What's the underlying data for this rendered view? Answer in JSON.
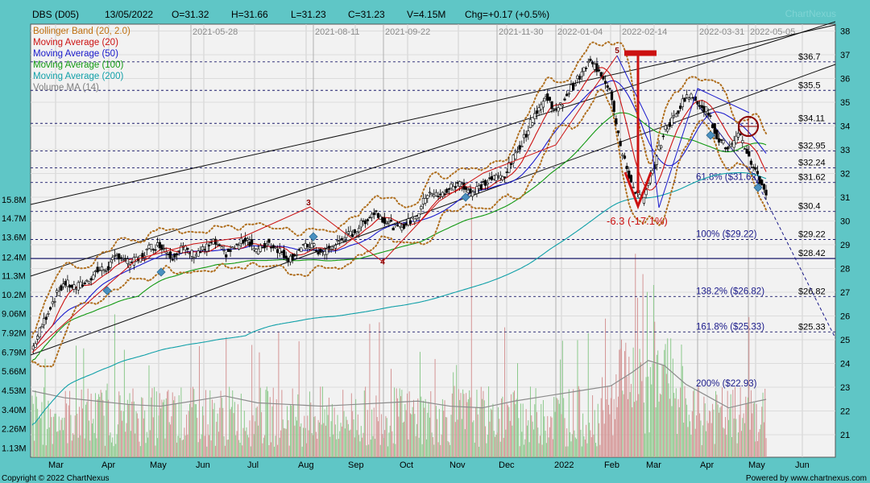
{
  "chart_data": {
    "type": "candlestick",
    "header": {
      "symbol": "DBS (D05)",
      "date": "13/05/2022",
      "open": "O=31.32",
      "high": "H=31.66",
      "low": "L=31.23",
      "close": "C=31.23",
      "volume": "V=4.15M",
      "change": "Chg=+0.17 (+0.5%)"
    },
    "watermark": "ChartNexus",
    "legend": [
      {
        "label": "Bollinger Band (20, 2.0)",
        "color": "#c07010"
      },
      {
        "label": "Moving Average (20)",
        "color": "#cc1111"
      },
      {
        "label": "Moving Average (50)",
        "color": "#1a1acc"
      },
      {
        "label": "Moving Average (100)",
        "color": "#119911"
      },
      {
        "label": "Moving Average (200)",
        "color": "#10a0a8"
      },
      {
        "label": "Volume MA (14)",
        "color": "#808080"
      }
    ],
    "y_ticks_price": [
      21,
      22,
      23,
      24,
      25,
      26,
      27,
      28,
      29,
      30,
      31,
      32,
      33,
      34,
      35,
      36,
      37,
      38
    ],
    "y_ticks_volume": [
      "15.8M",
      "14.7M",
      "13.6M",
      "12.4M",
      "11.3M",
      "10.2M",
      "9.06M",
      "7.92M",
      "6.79M",
      "5.66M",
      "4.53M",
      "3.40M",
      "2.26M",
      "1.13M"
    ],
    "x_months": [
      "Mar",
      "Apr",
      "May",
      "Jun",
      "Jul",
      "Aug",
      "Sep",
      "Oct",
      "Nov",
      "Dec",
      "2022",
      "Feb",
      "Mar",
      "Apr",
      "May",
      "Jun"
    ],
    "date_markers": [
      "2021-05-28",
      "2021-08-11",
      "2021-09-22",
      "2021-11-30",
      "2022-01-04",
      "2022-02-14",
      "2022-03-31",
      "2022-05-05"
    ],
    "level_lines": [
      {
        "value": 36.7,
        "label": "$36.7"
      },
      {
        "value": 35.5,
        "label": "$35.5"
      },
      {
        "value": 34.11,
        "label": "$34.11"
      },
      {
        "value": 32.95,
        "label": "$32.95"
      },
      {
        "value": 32.24,
        "label": "$32.24"
      },
      {
        "value": 31.62,
        "label": "$31.62"
      },
      {
        "value": 30.4,
        "label": "$30.4"
      },
      {
        "value": 29.22,
        "label": "$29.22"
      },
      {
        "value": 28.42,
        "label": "$28.42"
      },
      {
        "value": 26.82,
        "label": "$26.82"
      },
      {
        "value": 25.33,
        "label": "$25.33"
      }
    ],
    "fibonacci": [
      {
        "value": 31.62,
        "label": "61.8%   ($31.62)"
      },
      {
        "value": 29.22,
        "label": "100%   ($29.22)"
      },
      {
        "value": 26.82,
        "label": "138.2%   ($26.82)"
      },
      {
        "value": 25.33,
        "label": "161.8%   ($25.33)"
      },
      {
        "value": 22.93,
        "label": "200%   ($22.93)"
      }
    ],
    "drop_annotation": "-6.3 (-17.1%)",
    "wave_labels": [
      {
        "label": "3",
        "value": 30.6
      },
      {
        "label": "4",
        "value": 28.1
      },
      {
        "label": "5",
        "value": 37.0
      }
    ],
    "price_approx": [
      [
        0,
        24.6
      ],
      [
        10,
        25.7
      ],
      [
        20,
        26.7
      ],
      [
        30,
        27.4
      ],
      [
        40,
        27.2
      ],
      [
        50,
        27.4
      ],
      [
        60,
        27.9
      ],
      [
        70,
        28.0
      ],
      [
        80,
        28.6
      ],
      [
        90,
        28.2
      ],
      [
        100,
        28.4
      ],
      [
        110,
        28.9
      ],
      [
        120,
        29.0
      ],
      [
        130,
        28.5
      ],
      [
        140,
        28.9
      ],
      [
        150,
        28.6
      ],
      [
        160,
        28.8
      ],
      [
        170,
        29.1
      ],
      [
        180,
        28.6
      ],
      [
        190,
        28.9
      ],
      [
        200,
        29.3
      ],
      [
        210,
        28.7
      ],
      [
        220,
        29.1
      ],
      [
        230,
        28.8
      ],
      [
        240,
        28.4
      ],
      [
        250,
        28.8
      ],
      [
        260,
        29.0
      ],
      [
        270,
        28.6
      ],
      [
        280,
        28.9
      ],
      [
        290,
        29.3
      ],
      [
        300,
        29.5
      ],
      [
        310,
        30.0
      ],
      [
        320,
        30.4
      ],
      [
        330,
        30.0
      ],
      [
        340,
        29.7
      ],
      [
        350,
        29.9
      ],
      [
        360,
        30.3
      ],
      [
        370,
        31.3
      ],
      [
        380,
        31.0
      ],
      [
        390,
        31.4
      ],
      [
        400,
        31.6
      ],
      [
        410,
        31.2
      ],
      [
        420,
        31.5
      ],
      [
        430,
        31.8
      ],
      [
        440,
        31.9
      ],
      [
        450,
        32.7
      ],
      [
        460,
        33.6
      ],
      [
        470,
        34.6
      ],
      [
        480,
        35.2
      ],
      [
        490,
        34.6
      ],
      [
        500,
        35.4
      ],
      [
        510,
        36.0
      ],
      [
        520,
        36.7
      ],
      [
        530,
        36.3
      ],
      [
        540,
        35.5
      ],
      [
        550,
        32.9
      ],
      [
        560,
        31.5
      ],
      [
        570,
        30.8
      ],
      [
        580,
        32.2
      ],
      [
        590,
        33.8
      ],
      [
        600,
        34.4
      ],
      [
        610,
        35.3
      ],
      [
        620,
        35.1
      ],
      [
        630,
        34.6
      ],
      [
        640,
        33.5
      ],
      [
        650,
        33.0
      ],
      [
        660,
        33.6
      ],
      [
        670,
        32.6
      ],
      [
        680,
        31.6
      ],
      [
        685,
        31.2
      ]
    ],
    "volume_ma_approx": [
      [
        0,
        4.5
      ],
      [
        30,
        4.1
      ],
      [
        60,
        3.9
      ],
      [
        90,
        3.7
      ],
      [
        120,
        3.6
      ],
      [
        150,
        3.9
      ],
      [
        180,
        4.2
      ],
      [
        210,
        3.8
      ],
      [
        240,
        3.7
      ],
      [
        270,
        3.6
      ],
      [
        300,
        3.7
      ],
      [
        330,
        3.8
      ],
      [
        360,
        3.9
      ],
      [
        390,
        3.6
      ],
      [
        420,
        3.5
      ],
      [
        450,
        3.9
      ],
      [
        480,
        4.2
      ],
      [
        510,
        4.5
      ],
      [
        540,
        4.8
      ],
      [
        560,
        5.6
      ],
      [
        575,
        6.3
      ],
      [
        590,
        6.0
      ],
      [
        610,
        4.9
      ],
      [
        630,
        4.2
      ],
      [
        650,
        3.5
      ],
      [
        670,
        3.8
      ],
      [
        685,
        4.0
      ]
    ]
  }
}
